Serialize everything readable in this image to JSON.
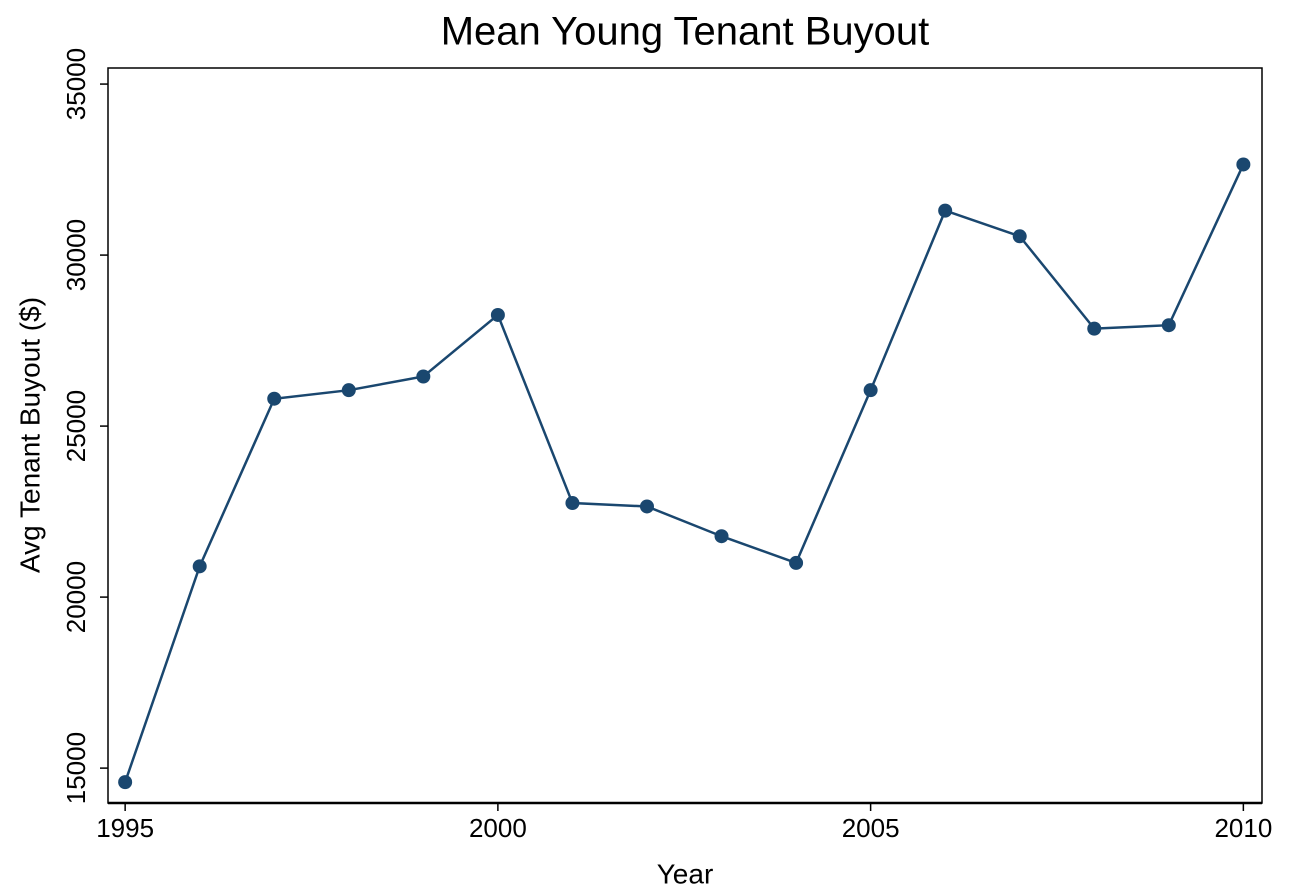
{
  "chart_data": {
    "type": "line",
    "title": "Mean Young Tenant Buyout",
    "x_label": "Year",
    "y_label": "Avg Tenant Buyout ($)",
    "x": [
      1995,
      1996,
      1997,
      1998,
      1999,
      2000,
      2001,
      2002,
      2003,
      2004,
      2005,
      2006,
      2007,
      2008,
      2009,
      2010
    ],
    "series": [
      {
        "name": "Avg Tenant Buyout",
        "color": "#1a476f",
        "values": [
          14590,
          20900,
          25800,
          26050,
          26450,
          28250,
          22750,
          22650,
          21780,
          21000,
          26050,
          31300,
          30550,
          27850,
          27950,
          32650
        ]
      }
    ],
    "xlim": [
      1994.77,
      2010.25
    ],
    "xticks": [
      1995,
      2000,
      2005,
      2010
    ],
    "ylim": [
      13980,
      35470
    ],
    "yticks": [
      15000,
      20000,
      25000,
      30000,
      35000
    ],
    "grid": false
  }
}
